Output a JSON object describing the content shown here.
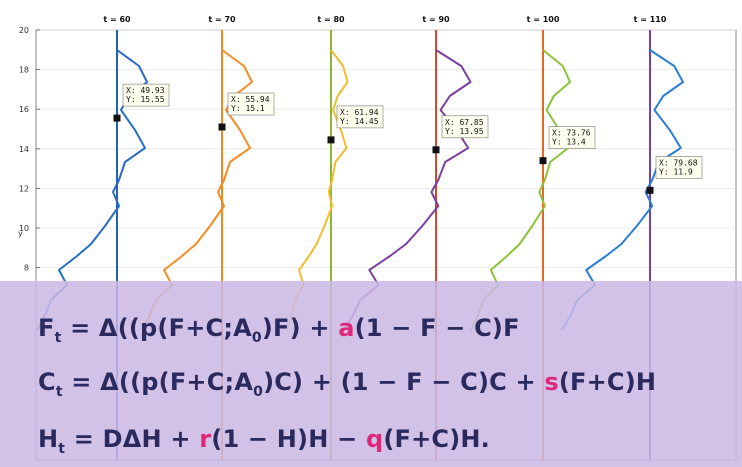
{
  "chart_data": {
    "type": "line",
    "ylim": [
      7,
      20
    ],
    "y_ticks": [
      "8",
      "10",
      "12",
      "14",
      "16",
      "18",
      "20"
    ],
    "ylabel": "y",
    "grid": true,
    "panels": [
      {
        "label": "t = 60",
        "front_y": 15.55,
        "datatip": {
          "x": "X: 49.93",
          "y": "Y: 15.55"
        },
        "color": "#1f63b4",
        "colors": [
          "#2a6cc4"
        ]
      },
      {
        "label": "t = 70",
        "front_y": 15.1,
        "datatip": {
          "x": "X: 55.94",
          "y": "Y: 15.1"
        },
        "color": "#f08a24",
        "colors": [
          "#f28c26"
        ]
      },
      {
        "label": "t = 80",
        "front_y": 14.45,
        "datatip": {
          "x": "X: 61.94",
          "y": "Y: 14.45"
        },
        "color": "#8db82e",
        "colors": [
          "#f2bc2c"
        ]
      },
      {
        "label": "t = 90",
        "front_y": 13.95,
        "datatip": {
          "x": "X: 67.85",
          "y": "Y: 13.95"
        },
        "color": "#d14a2a",
        "colors": [
          "#7b3f9e"
        ]
      },
      {
        "label": "t = 100",
        "front_y": 13.4,
        "datatip": {
          "x": "X: 73.76",
          "y": "Y: 13.4"
        },
        "color": "#e8662a",
        "colors": [
          "#8ec13a"
        ]
      },
      {
        "label": "t = 110",
        "front_y": 11.9,
        "datatip": {
          "x": "X: 79.68",
          "y": "Y: 11.9"
        },
        "color": "#7b3f9e",
        "colors": [
          "#2a7fd4"
        ]
      }
    ]
  },
  "equations": {
    "eq1": {
      "lhs": "F",
      "sub": "t",
      "p1": " = Δ((p(F+C;A",
      "sub0": "0",
      "p2": ")F) + ",
      "param": "a",
      "p3": "(1 − F − C)F"
    },
    "eq2": {
      "lhs": "C",
      "sub": "t",
      "p1": " = Δ((p(F+C;A",
      "sub0": "0",
      "p2": ")C) + (1 − F − C)C + ",
      "param": "s",
      "p3": "(F+C)H"
    },
    "eq3": {
      "lhs": "H",
      "sub": "t",
      "p1": " = DΔH + ",
      "param": "r",
      "p2": "(1 − H)H − ",
      "param2": "q",
      "p3": "(F+C)H."
    }
  }
}
